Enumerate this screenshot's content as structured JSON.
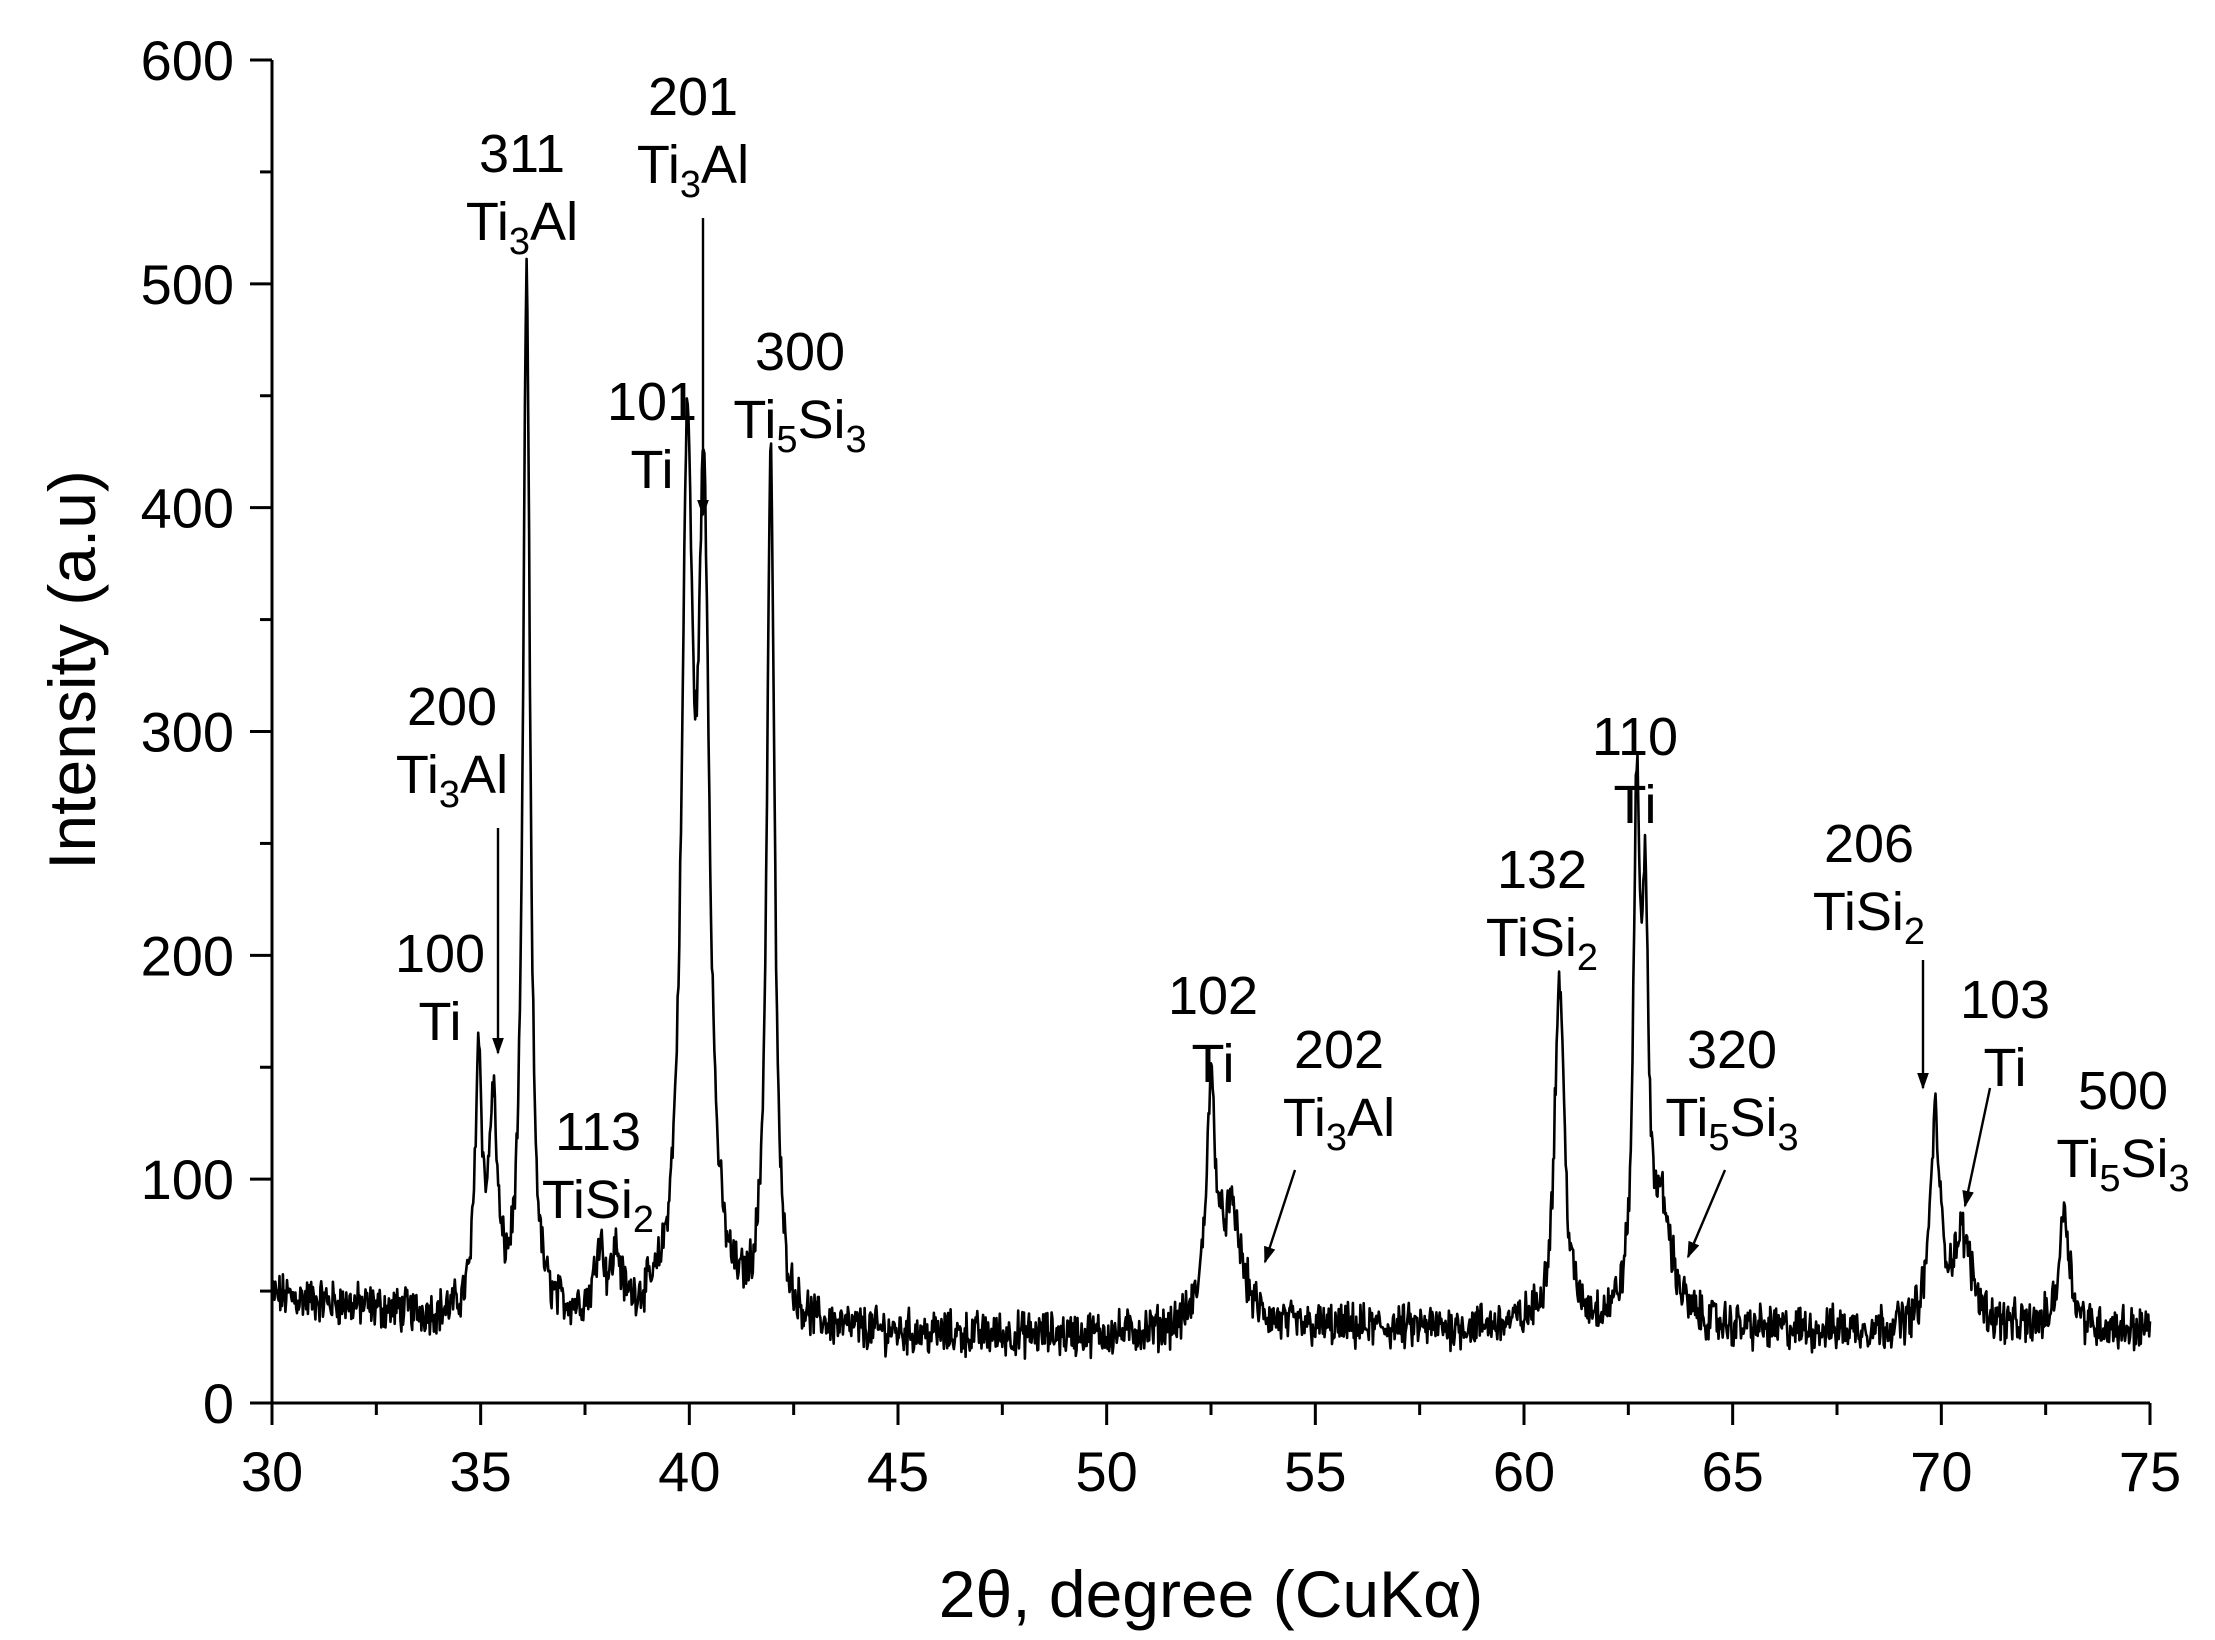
{
  "chart_data": {
    "type": "line",
    "title": "",
    "xlabel": "2θ, degree (CuKα)",
    "ylabel": "Intensity (a.u)",
    "xlim": [
      30,
      75
    ],
    "ylim": [
      0,
      600
    ],
    "xticks": [
      30,
      35,
      40,
      45,
      50,
      55,
      60,
      65,
      70,
      75
    ],
    "yticks": [
      0,
      100,
      200,
      300,
      400,
      500,
      600
    ],
    "grid": false,
    "legend": "none",
    "line_color": "#000000",
    "series": [
      {
        "baseline": [
          [
            30,
            48
          ],
          [
            32,
            43
          ],
          [
            34,
            38
          ],
          [
            36.5,
            36
          ],
          [
            38,
            38
          ],
          [
            40,
            36
          ],
          [
            43,
            32
          ],
          [
            46,
            30
          ],
          [
            50,
            30
          ],
          [
            53,
            32
          ],
          [
            55,
            33
          ],
          [
            58,
            33
          ],
          [
            60,
            34
          ],
          [
            62,
            34
          ],
          [
            64,
            33
          ],
          [
            66,
            32
          ],
          [
            68,
            32
          ],
          [
            70,
            32
          ],
          [
            72,
            32
          ],
          [
            75,
            33
          ]
        ],
        "peaks": [
          {
            "x": 34.95,
            "height": 150,
            "width": 0.1
          },
          {
            "x": 35.3,
            "height": 125,
            "width": 0.12
          },
          {
            "x": 36.1,
            "height": 500,
            "width": 0.1
          },
          {
            "x": 37.85,
            "height": 68,
            "width": 0.12
          },
          {
            "x": 38.25,
            "height": 62,
            "width": 0.12
          },
          {
            "x": 39.95,
            "height": 398,
            "width": 0.16
          },
          {
            "x": 40.35,
            "height": 375,
            "width": 0.16
          },
          {
            "x": 41.95,
            "height": 420,
            "width": 0.11
          },
          {
            "x": 52.5,
            "height": 132,
            "width": 0.14
          },
          {
            "x": 53.0,
            "height": 80,
            "width": 0.3
          },
          {
            "x": 60.85,
            "height": 188,
            "width": 0.14
          },
          {
            "x": 62.7,
            "height": 248,
            "width": 0.09
          },
          {
            "x": 62.9,
            "height": 190,
            "width": 0.1
          },
          {
            "x": 63.3,
            "height": 80,
            "width": 0.3
          },
          {
            "x": 69.85,
            "height": 122,
            "width": 0.14
          },
          {
            "x": 70.5,
            "height": 72,
            "width": 0.3
          },
          {
            "x": 72.95,
            "height": 86,
            "width": 0.15
          }
        ]
      }
    ],
    "annotations": [
      {
        "lines": [
          "100",
          "Ti"
        ],
        "x": 35.0,
        "y": 150
      },
      {
        "lines": [
          "200",
          "Ti_3Al"
        ],
        "x": 35.4,
        "y": 130,
        "arrow": true
      },
      {
        "lines": [
          "311",
          "Ti_3Al"
        ],
        "x": 36.1,
        "y": 500
      },
      {
        "lines": [
          "113",
          "TiSi_2"
        ],
        "x": 38.0,
        "y": 70
      },
      {
        "lines": [
          "101",
          "Ti"
        ],
        "x": 39.95,
        "y": 398
      },
      {
        "lines": [
          "201",
          "Ti_3Al"
        ],
        "x": 40.45,
        "y": 378,
        "arrow": true
      },
      {
        "lines": [
          "300",
          "Ti_5Si_3"
        ],
        "x": 41.95,
        "y": 420
      },
      {
        "lines": [
          "102",
          "Ti"
        ],
        "x": 52.5,
        "y": 132
      },
      {
        "lines": [
          "202",
          "Ti_3Al"
        ],
        "x": 53.7,
        "y": 62,
        "arrow": true
      },
      {
        "lines": [
          "132",
          "TiSi_2"
        ],
        "x": 60.85,
        "y": 188
      },
      {
        "lines": [
          "110",
          "Ti"
        ],
        "x": 62.7,
        "y": 248
      },
      {
        "lines": [
          "320",
          "Ti_5Si_3"
        ],
        "x": 63.9,
        "y": 62,
        "arrow": true
      },
      {
        "lines": [
          "206",
          "TiSi_2"
        ],
        "x": 69.8,
        "y": 126,
        "arrow": true
      },
      {
        "lines": [
          "103",
          "Ti"
        ],
        "x": 70.75,
        "y": 88,
        "arrow": true
      },
      {
        "lines": [
          "500",
          "Ti_5Si_3"
        ],
        "x": 72.95,
        "y": 86
      }
    ]
  }
}
